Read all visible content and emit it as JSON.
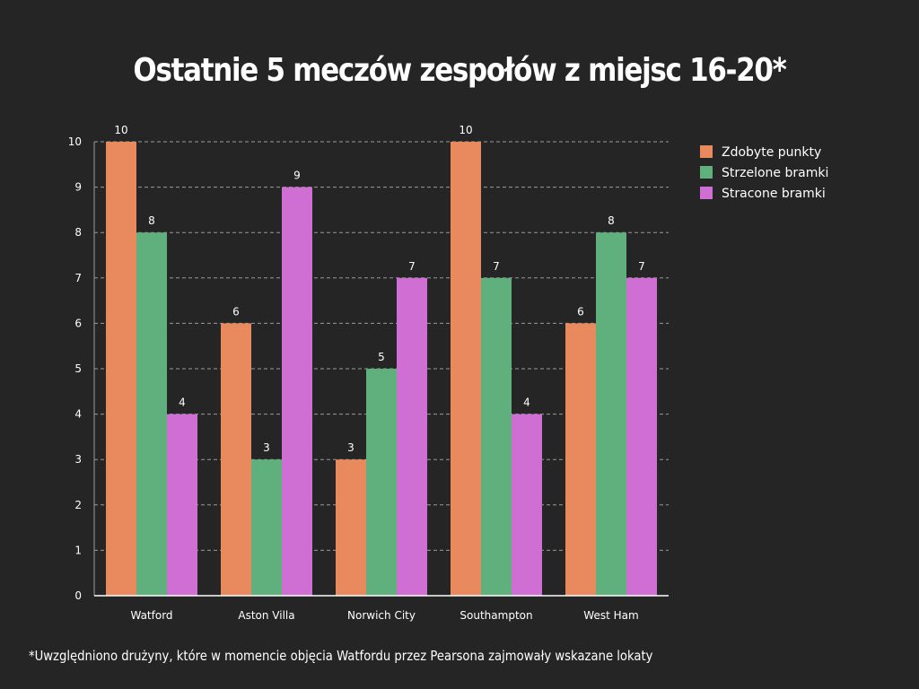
{
  "chart_data": {
    "type": "bar",
    "title": "Ostatnie 5 meczów zespołów z miejsc 16-20*",
    "categories": [
      "Watford",
      "Aston Villa",
      "Norwich City",
      "Southampton",
      "West Ham"
    ],
    "series": [
      {
        "name": "Zdobyte punkty",
        "color": "#e8895e",
        "values": [
          10,
          6,
          3,
          10,
          6
        ]
      },
      {
        "name": "Strzelone bramki",
        "color": "#5fb07c",
        "values": [
          8,
          3,
          5,
          7,
          8
        ]
      },
      {
        "name": "Stracone bramki",
        "color": "#cf6fd3",
        "values": [
          4,
          9,
          7,
          4,
          7
        ]
      }
    ],
    "ylim": [
      0,
      10
    ],
    "yticks": [
      0,
      1,
      2,
      3,
      4,
      5,
      6,
      7,
      8,
      9,
      10
    ],
    "xlabel": "",
    "ylabel": "",
    "grid": true,
    "legend": "top-right",
    "footnote": "*Uwzględniono drużyny, które w momencie objęcia Watfordu przez Pearsona zajmowały wskazane lokaty"
  }
}
